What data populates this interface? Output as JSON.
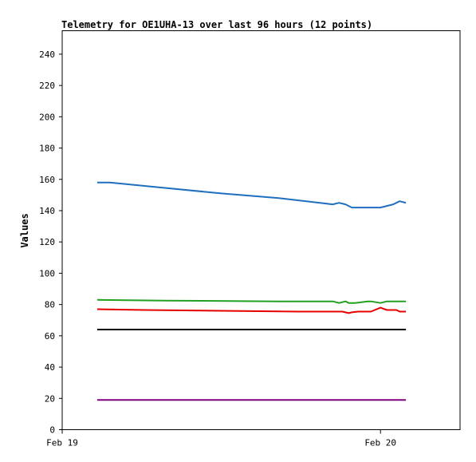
{
  "chart_data": {
    "type": "line",
    "title": "Telemetry for OE1UHA-13 over last 96 hours (12 points)",
    "xlabel": "",
    "ylabel": "Values",
    "ylim": [
      0,
      255
    ],
    "yticks": [
      0,
      20,
      40,
      60,
      80,
      100,
      120,
      140,
      160,
      180,
      200,
      220,
      240
    ],
    "x_tick_labels": [
      "Feb 19",
      "Feb 20"
    ],
    "x_tick_positions": [
      0,
      1
    ],
    "xlim": [
      0,
      1.25
    ],
    "grid": false,
    "legend": "none",
    "series": [
      {
        "color": "#1f6fbf",
        "x": [
          0.11,
          0.15,
          0.3,
          0.5,
          0.68,
          0.85,
          0.87,
          0.89,
          0.91,
          0.95,
          1.0,
          1.04,
          1.06,
          1.08
        ],
        "y": [
          158,
          158,
          155,
          151,
          148,
          144,
          145,
          144,
          142,
          142,
          142,
          144,
          146,
          145
        ]
      },
      {
        "color": "#22a022",
        "x": [
          0.11,
          0.32,
          0.68,
          0.85,
          0.87,
          0.89,
          0.9,
          0.92,
          0.96,
          0.97,
          1.0,
          1.02,
          1.08
        ],
        "y": [
          83,
          82.5,
          82,
          82,
          81,
          82,
          81,
          81,
          82,
          82,
          81,
          82,
          82
        ]
      },
      {
        "color": "#e60000",
        "x": [
          0.11,
          0.26,
          0.5,
          0.74,
          0.88,
          0.9,
          0.91,
          0.93,
          0.97,
          1.0,
          1.02,
          1.05,
          1.06,
          1.08
        ],
        "y": [
          77,
          76.5,
          76,
          75.5,
          75.5,
          74.5,
          75,
          75.5,
          75.5,
          78,
          76.5,
          76.5,
          75.5,
          75.5
        ]
      },
      {
        "color": "#000000",
        "x": [
          0.11,
          1.08
        ],
        "y": [
          64,
          64
        ]
      },
      {
        "color": "#800080",
        "x": [
          0.11,
          1.08
        ],
        "y": [
          19,
          19
        ]
      }
    ]
  }
}
